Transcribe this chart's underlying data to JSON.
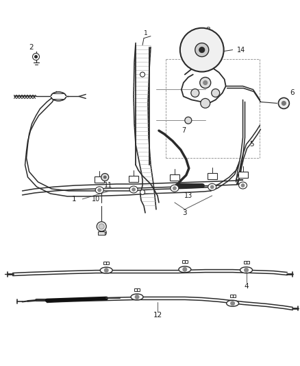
{
  "bg_color": "#ffffff",
  "line_color": "#2a2a2a",
  "text_color": "#1a1a1a",
  "figsize": [
    4.38,
    5.33
  ],
  "dpi": 100
}
